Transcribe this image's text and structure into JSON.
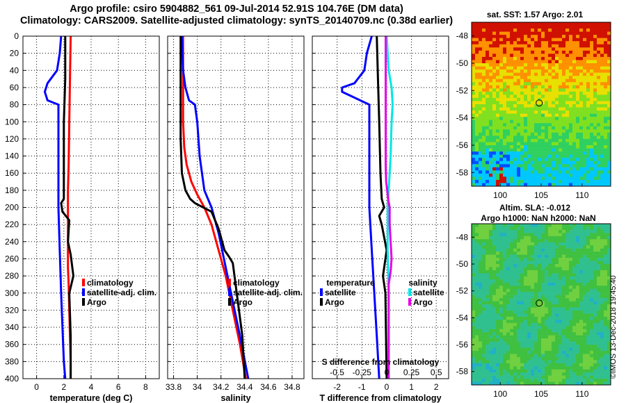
{
  "figure": {
    "title_line1": "Argo profile: csiro 5904882_561 09-Jul-2014 52.91S 104.76E (DM data)",
    "title_line2": "Climatology: CARS2009. Satellite-adjusted climatology: synTS_20140709.nc (0.38d earlier)",
    "watermark": "©IMOS 13-Dec-2018 19:45:40"
  },
  "colors": {
    "climatology": "#ff0000",
    "satellite": "#0000ff",
    "argo": "#000000",
    "salinity_satellite": "#00e6e6",
    "salinity_argo": "#e600e6"
  },
  "chart_data": [
    {
      "type": "line",
      "name": "temperature",
      "xlabel": "temperature (deg C)",
      "ylabel": "",
      "xlim": [
        -1,
        9
      ],
      "ylim": [
        400,
        0
      ],
      "xticks": [
        "0",
        "2",
        "4",
        "6",
        "8"
      ],
      "yticks": [
        "0",
        "20",
        "40",
        "60",
        "80",
        "100",
        "120",
        "140",
        "160",
        "180",
        "200",
        "220",
        "240",
        "260",
        "280",
        "300",
        "320",
        "340",
        "360",
        "380",
        "400"
      ],
      "grid": true,
      "legend": [
        "climatology",
        "satellite-adj. clim.",
        "Argo"
      ],
      "series": [
        {
          "name": "climatology",
          "color": "#ff0000",
          "x": [
            2.5,
            2.45,
            2.4,
            2.35,
            2.3,
            2.3,
            2.3,
            2.3,
            2.3,
            2.35,
            2.4,
            2.45,
            2.5,
            2.5
          ],
          "y": [
            0,
            50,
            100,
            150,
            180,
            200,
            220,
            250,
            270,
            290,
            320,
            350,
            380,
            400
          ]
        },
        {
          "name": "satellite-adj. clim.",
          "color": "#0000ff",
          "x": [
            1.8,
            1.7,
            1.5,
            0.8,
            0.6,
            0.8,
            1.6,
            1.6,
            1.6,
            1.7,
            1.8,
            1.9,
            2.0,
            2.1
          ],
          "y": [
            0,
            20,
            40,
            55,
            65,
            75,
            80,
            120,
            200,
            250,
            300,
            340,
            380,
            400
          ]
        },
        {
          "name": "Argo",
          "color": "#000000",
          "x": [
            2.1,
            2.1,
            2.0,
            2.0,
            2.0,
            1.8,
            1.9,
            2.4,
            2.3,
            2.5,
            2.7,
            2.4,
            2.5,
            2.5
          ],
          "y": [
            0,
            50,
            100,
            150,
            190,
            195,
            205,
            215,
            240,
            255,
            280,
            300,
            350,
            400
          ]
        }
      ]
    },
    {
      "type": "line",
      "name": "salinity",
      "xlabel": "salinity",
      "ylabel": "",
      "xlim": [
        33.75,
        34.9
      ],
      "ylim": [
        400,
        0
      ],
      "xticks": [
        "33.8",
        "34",
        "34.2",
        "34.4",
        "34.6",
        "34.8"
      ],
      "grid": true,
      "legend": [
        "climatology",
        "satellite-adj. clim.",
        "Argo"
      ],
      "series": [
        {
          "name": "climatology",
          "color": "#ff0000",
          "x": [
            33.88,
            33.88,
            33.88,
            33.89,
            33.91,
            33.95,
            34.0,
            34.06,
            34.12,
            34.18,
            34.24,
            34.3,
            34.36,
            34.41
          ],
          "y": [
            0,
            60,
            100,
            130,
            150,
            170,
            185,
            200,
            220,
            250,
            280,
            320,
            360,
            400
          ]
        },
        {
          "name": "satellite-adj. clim.",
          "color": "#0000ff",
          "x": [
            33.87,
            33.88,
            33.9,
            33.93,
            33.98,
            33.99,
            34.0,
            34.02,
            34.06,
            34.12,
            34.18,
            34.24,
            34.3,
            34.36,
            34.43
          ],
          "y": [
            0,
            40,
            60,
            75,
            80,
            90,
            100,
            140,
            180,
            200,
            230,
            270,
            310,
            350,
            400
          ]
        },
        {
          "name": "Argo",
          "color": "#000000",
          "x": [
            33.86,
            33.86,
            33.86,
            33.87,
            33.9,
            33.94,
            33.98,
            34.12,
            34.18,
            34.23,
            34.27,
            34.3,
            34.38,
            34.4
          ],
          "y": [
            0,
            60,
            120,
            160,
            180,
            190,
            195,
            205,
            225,
            250,
            258,
            265,
            350,
            400
          ]
        }
      ]
    },
    {
      "type": "line",
      "name": "difference",
      "xlabel": "T difference from climatology",
      "top_xlabel": "S difference from climatology",
      "xlim": [
        -3,
        2.5
      ],
      "top_xlim": [
        -0.75,
        0.625
      ],
      "ylim": [
        400,
        0
      ],
      "xticks": [
        "-2",
        "-1",
        "0",
        "1",
        "2"
      ],
      "top_xticks": [
        "-0.5",
        "-0.25",
        "0",
        "0.25",
        "0.5"
      ],
      "grid": true,
      "legend_temperature_title": "temperature",
      "legend_temperature": [
        "satellite",
        "Argo"
      ],
      "legend_salinity_title": "salinity",
      "legend_salinity": [
        "satellite",
        "Argo"
      ],
      "series": [
        {
          "name": "T satellite",
          "color": "#0000ff",
          "x": [
            -0.6,
            -0.8,
            -0.9,
            -1.3,
            -1.8,
            -1.8,
            -0.7,
            -0.7,
            -0.7,
            -0.6,
            -0.5,
            -0.4,
            -0.3
          ],
          "y": [
            0,
            20,
            40,
            55,
            60,
            65,
            80,
            120,
            200,
            250,
            300,
            350,
            400
          ]
        },
        {
          "name": "T Argo",
          "color": "#000000",
          "x": [
            -0.4,
            -0.35,
            -0.3,
            -0.25,
            -0.2,
            -0.1,
            -0.3,
            -0.2,
            0.0,
            -0.15,
            -0.05,
            0.0
          ],
          "y": [
            0,
            50,
            100,
            160,
            190,
            200,
            210,
            220,
            250,
            280,
            300,
            400
          ]
        },
        {
          "name": "S satellite",
          "color": "#00e6e6",
          "x": [
            0.0,
            0.02,
            0.05,
            0.06,
            0.05,
            0.04,
            0.02,
            0.01,
            0.01,
            0.02,
            0.02
          ],
          "y": [
            0,
            40,
            60,
            80,
            100,
            140,
            180,
            200,
            250,
            300,
            400
          ]
        },
        {
          "name": "S Argo",
          "color": "#e600e6",
          "x": [
            -0.01,
            -0.01,
            -0.01,
            -0.01,
            -0.005,
            0.015,
            0.03,
            0.03,
            0.05,
            0.04,
            0.02,
            0.02
          ],
          "y": [
            0,
            50,
            100,
            150,
            170,
            190,
            200,
            220,
            260,
            275,
            290,
            400
          ]
        }
      ]
    },
    {
      "type": "heatmap",
      "name": "sst-map",
      "title": "sat. SST: 1.57 Argo: 2.01",
      "xlim": [
        96.5,
        113.5
      ],
      "ylim": [
        -59,
        -47
      ],
      "xticks": [
        "100",
        "105",
        "110"
      ],
      "yticks": [
        "-48",
        "-50",
        "-52",
        "-54",
        "-56",
        "-58"
      ],
      "marker": {
        "lon": 104.76,
        "lat": -52.91
      }
    },
    {
      "type": "heatmap",
      "name": "sla-map",
      "title_line1": "Altim. SLA: -0.012",
      "title_line2": "Argo h1000: NaN h2000: NaN",
      "xlim": [
        96.5,
        113.5
      ],
      "ylim": [
        -59,
        -47
      ],
      "xticks": [
        "100",
        "105",
        "110"
      ],
      "yticks": [
        "-48",
        "-50",
        "-52",
        "-54",
        "-56",
        "-58"
      ],
      "marker": {
        "lon": 104.76,
        "lat": -52.91
      }
    }
  ]
}
